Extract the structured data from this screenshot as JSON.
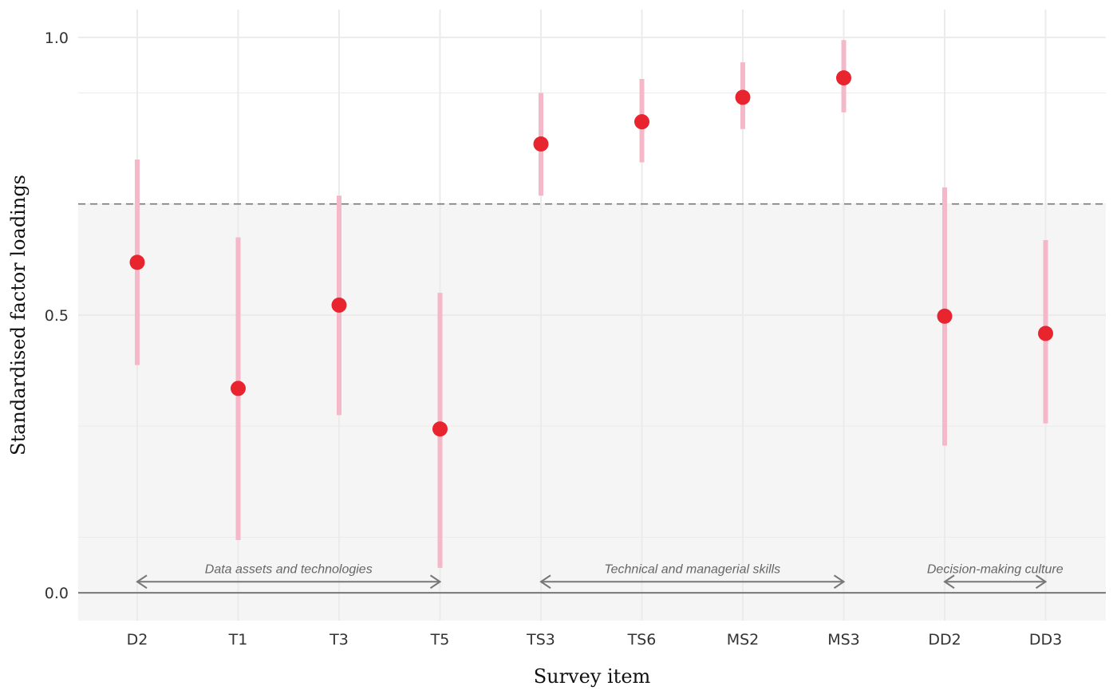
{
  "chart_data": {
    "type": "scatter",
    "subtype": "point-range",
    "title": "",
    "xlabel": "Survey item",
    "ylabel": "Standardised factor loadings",
    "categories": [
      "D2",
      "T1",
      "T3",
      "T5",
      "TS3",
      "TS6",
      "MS2",
      "MS3",
      "DD2",
      "DD3"
    ],
    "series": [
      {
        "values": [
          0.595,
          0.368,
          0.518,
          0.295,
          0.808,
          0.848,
          0.892,
          0.927,
          0.498,
          0.467
        ],
        "lower": [
          0.41,
          0.095,
          0.32,
          0.045,
          0.715,
          0.775,
          0.835,
          0.865,
          0.265,
          0.305
        ],
        "upper": [
          0.78,
          0.64,
          0.715,
          0.54,
          0.9,
          0.925,
          0.955,
          0.995,
          0.73,
          0.635
        ]
      }
    ],
    "ylim": [
      -0.05,
      1.05
    ],
    "yticks": [
      0.0,
      0.5,
      1.0
    ],
    "ytick_labels": [
      "0.0",
      "0.5",
      "1.0"
    ],
    "threshold": 0.7,
    "shaded_below_threshold": true,
    "grid": true,
    "legend": "none",
    "groups": [
      {
        "label": "Data assets and technologies",
        "from": "D2",
        "to": "T5"
      },
      {
        "label": "Technical and managerial skills",
        "from": "TS3",
        "to": "MS3"
      },
      {
        "label": "Decision-making culture",
        "from": "DD2",
        "to": "DD3"
      }
    ],
    "group_arrow_y": 0.02,
    "colors": {
      "point": "#e8252f",
      "interval": "#f5b8c8",
      "shade": "#f5f5f5",
      "grid": "#ebebeb",
      "threshold": "#777777",
      "zero_line": "#777777",
      "group_arrow": "#777777"
    }
  }
}
